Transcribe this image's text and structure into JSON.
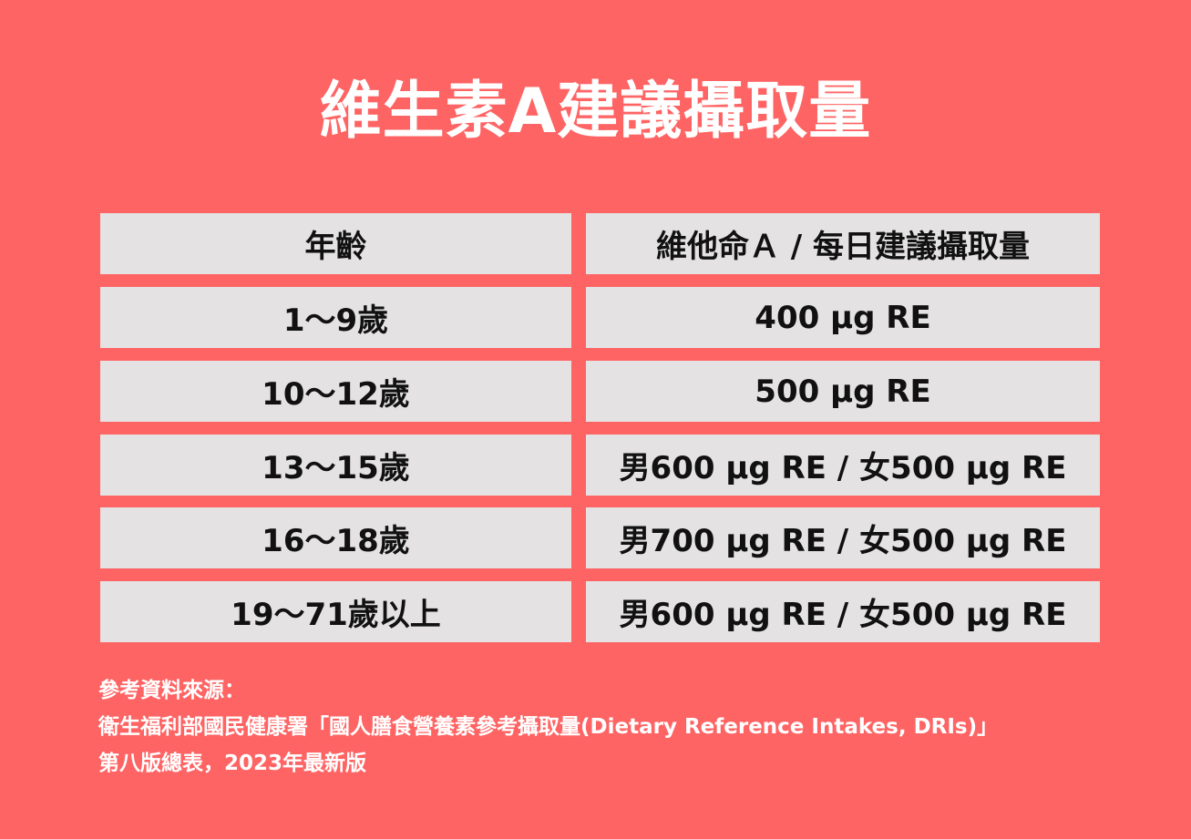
{
  "title": "維生素A建議攝取量",
  "table": {
    "headers": [
      "年齡",
      "維他命Ａ / 每日建議攝取量"
    ],
    "rows": [
      {
        "age": "1～9歲",
        "intake": "400 μg RE"
      },
      {
        "age": "10～12歲",
        "intake": "500 μg RE"
      },
      {
        "age": "13～15歲",
        "intake": "男600 μg RE / 女500 μg RE"
      },
      {
        "age": "16～18歲",
        "intake": "男700 μg RE / 女500 μg RE"
      },
      {
        "age": "19～71歲以上",
        "intake": "男600 μg RE / 女500 μg RE"
      }
    ]
  },
  "footer": {
    "label": "參考資料來源：",
    "line1": "衛生福利部國民健康署「國人膳食營養素參考攝取量(Dietary Reference Intakes, DRIs)」",
    "line2": "第八版總表，2023年最新版"
  },
  "colors": {
    "background": "#ff6464",
    "cell": "#e4e2e3",
    "title": "#ffffff"
  }
}
